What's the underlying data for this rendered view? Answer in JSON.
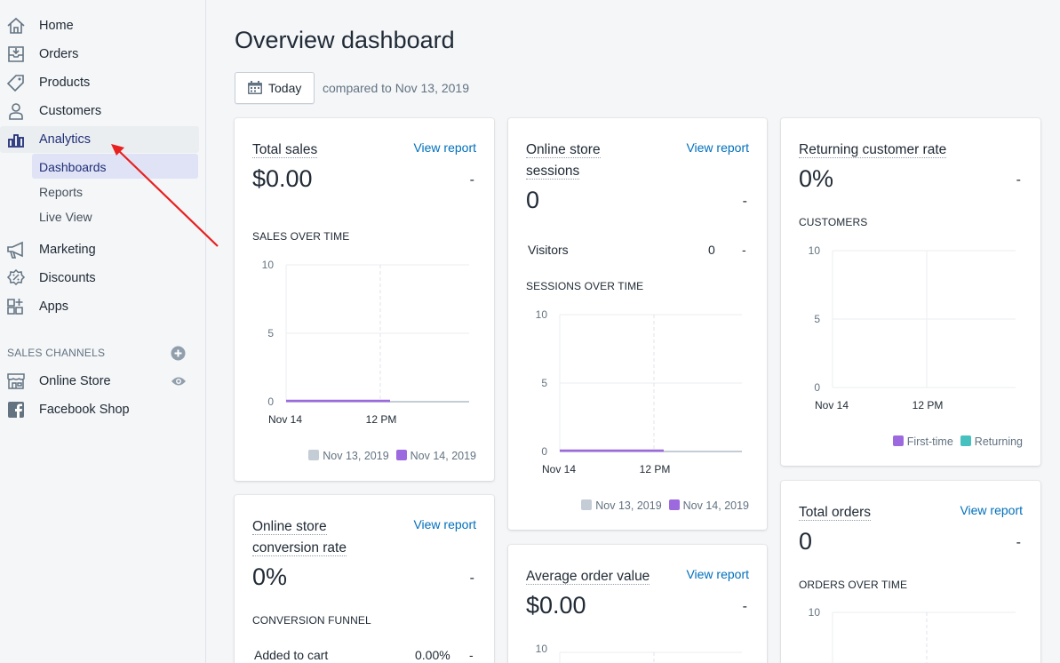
{
  "nav": {
    "home": "Home",
    "orders": "Orders",
    "products": "Products",
    "customers": "Customers",
    "analytics": "Analytics",
    "dashboards": "Dashboards",
    "reports": "Reports",
    "live_view": "Live View",
    "marketing": "Marketing",
    "discounts": "Discounts",
    "apps": "Apps",
    "sales_channels": "SALES CHANNELS",
    "online_store": "Online Store",
    "facebook_shop": "Facebook Shop"
  },
  "header": {
    "title": "Overview dashboard",
    "date_button": "Today",
    "compare_text": "compared to Nov 13, 2019"
  },
  "common": {
    "view_report": "View report",
    "dash": "-"
  },
  "cards": {
    "total_sales": {
      "title": "Total sales",
      "value": "$0.00",
      "chart_label": "SALES OVER TIME"
    },
    "sessions": {
      "title1": "Online store",
      "title2": "sessions",
      "value": "0",
      "visitors_label": "Visitors",
      "visitors_value": "0",
      "chart_label": "SESSIONS OVER TIME"
    },
    "returning": {
      "title": "Returning customer rate",
      "value": "0%",
      "chart_label": "CUSTOMERS"
    },
    "conversion": {
      "title1": "Online store",
      "title2": "conversion rate",
      "value": "0%",
      "chart_label": "CONVERSION FUNNEL",
      "row_label": "Added to cart",
      "row_value": "0.00%"
    },
    "aov": {
      "title": "Average order value",
      "value": "$0.00"
    },
    "total_orders": {
      "title": "Total orders",
      "value": "0",
      "chart_label": "ORDERS OVER TIME"
    }
  },
  "legend": {
    "prev": "Nov 13, 2019",
    "curr": "Nov 14, 2019",
    "first_time": "First-time",
    "returning": "Returning"
  },
  "axis": {
    "y10": "10",
    "y5": "5",
    "y0": "0",
    "x_start": "Nov 14",
    "x_mid": "12 PM"
  },
  "colors": {
    "prev": "#c4cdd5",
    "curr": "#9c6ade",
    "first_time": "#9c6ade",
    "returning": "#47c1bf",
    "link": "#006fbb",
    "arrow": "#e8201f"
  }
}
